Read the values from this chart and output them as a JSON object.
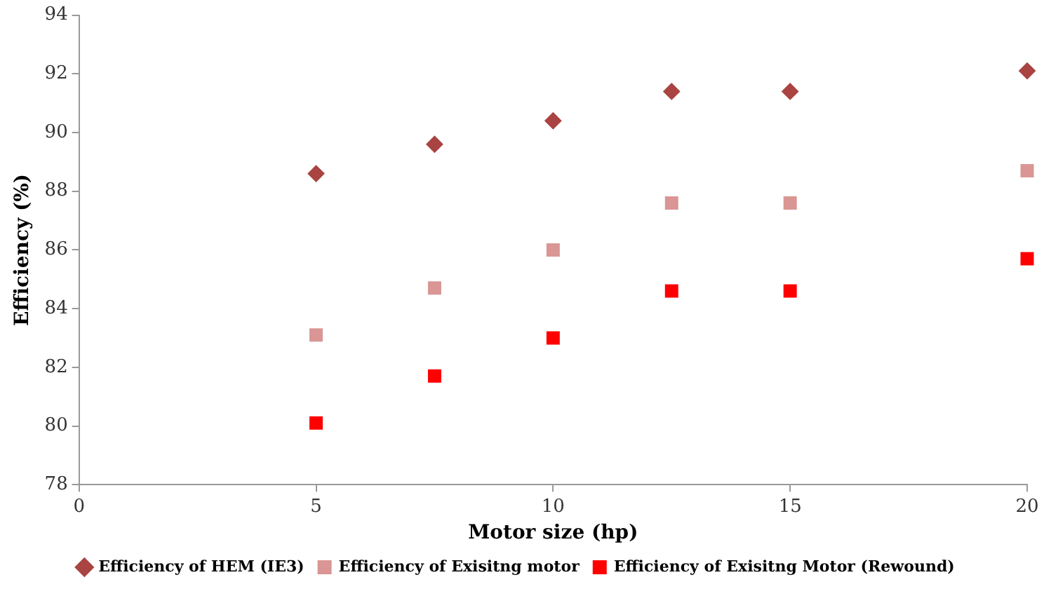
{
  "chart_data": {
    "type": "scatter",
    "xlabel": "Motor size (hp)",
    "ylabel": "Efficiency (%)",
    "x": [
      5,
      7.5,
      10,
      12.5,
      15,
      20
    ],
    "series": [
      {
        "name": "Efficiency of HEM (IE3)",
        "color": "#a94442",
        "marker": "diamond",
        "values": [
          88.6,
          89.6,
          90.4,
          91.4,
          91.4,
          92.1
        ]
      },
      {
        "name": "Efficiency of Exisitng motor",
        "color": "#d99694",
        "marker": "square",
        "values": [
          83.1,
          84.7,
          86.0,
          87.6,
          87.6,
          88.7
        ]
      },
      {
        "name": "Efficiency of Exisitng Motor (Rewound)",
        "color": "#ff0000",
        "marker": "square",
        "values": [
          80.1,
          81.7,
          83.0,
          84.6,
          84.6,
          85.7
        ]
      }
    ],
    "xlim": [
      0,
      20
    ],
    "xticks": [
      0,
      5,
      10,
      15,
      20
    ],
    "ylim": [
      78,
      94
    ],
    "yticks": [
      78,
      80,
      82,
      84,
      86,
      88,
      90,
      92,
      94
    ],
    "grid": false,
    "legend": "bottom"
  }
}
